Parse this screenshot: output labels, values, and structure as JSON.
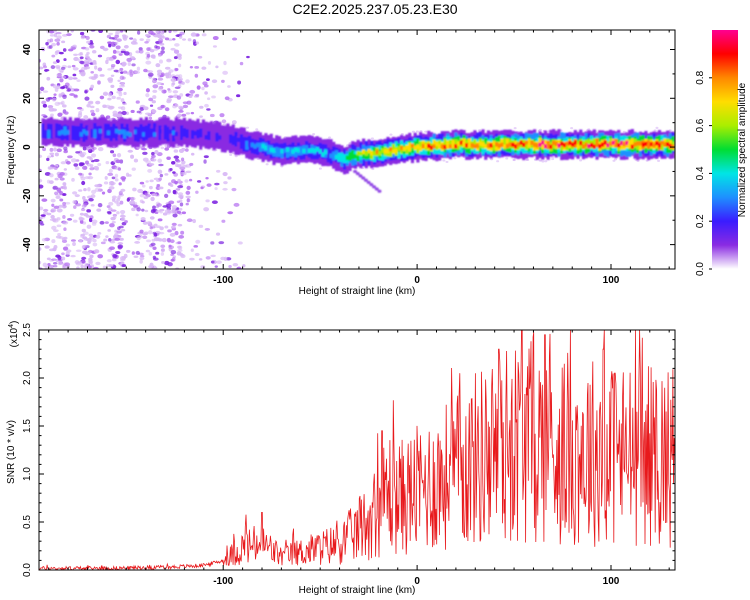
{
  "title": "C2E2.2025.237.05.23.E30",
  "colors": {
    "snr_line": "#e8191c",
    "axis": "#000000",
    "background": "#ffffff",
    "colormap": [
      "#ffffff",
      "#8a2be2",
      "#3a1cff",
      "#1e90ff",
      "#00e5e5",
      "#00dd33",
      "#aaee00",
      "#ffdd00",
      "#ff8800",
      "#ff0000",
      "#ff0090"
    ]
  },
  "chart_data": [
    {
      "type": "heatmap",
      "title": "C2E2.2025.237.05.23.E30",
      "xlabel": "Height of straight line (km)",
      "ylabel": "Frequency (Hz)",
      "xlim": [
        -195,
        133
      ],
      "ylim": [
        -50,
        48
      ],
      "xticks": [
        -100,
        0,
        100
      ],
      "xtick_labels": [
        "-100",
        "0",
        "100"
      ],
      "yticks": [
        -40,
        -20,
        0,
        20,
        40
      ],
      "ytick_labels": [
        "-40",
        "-20",
        "0",
        "20",
        "40"
      ],
      "colorbar": {
        "label": "Normalized spectral amplitude",
        "range": [
          0,
          1
        ],
        "ticks": [
          0.0,
          0.2,
          0.4,
          0.6,
          0.8
        ],
        "tick_labels": [
          "0.0",
          "0.2",
          "0.4",
          "0.6",
          "0.8"
        ]
      },
      "ridge": {
        "description_points_x": [
          -180,
          -150,
          -120,
          -100,
          -85,
          -70,
          -55,
          -45,
          -38,
          -30,
          -20,
          0,
          20,
          40,
          60,
          80,
          100,
          120,
          133
        ],
        "freq_hz": [
          6,
          6,
          6,
          4,
          1,
          -2,
          -1,
          -3,
          -5,
          -3,
          -2,
          0,
          1,
          1,
          1,
          1,
          1,
          1,
          1
        ],
        "amplitude": [
          0.3,
          0.3,
          0.25,
          0.2,
          0.35,
          0.4,
          0.4,
          0.35,
          0.5,
          0.6,
          0.7,
          0.8,
          0.85,
          0.85,
          0.9,
          0.88,
          0.9,
          0.88,
          0.85
        ]
      }
    },
    {
      "type": "line",
      "xlabel": "Height of straight line (km)",
      "ylabel": "SNR (10 * v/v)",
      "y_scale_label": "(x10",
      "y_scale_exponent": "4",
      "y_scale_suffix": ")",
      "xlim": [
        -195,
        133
      ],
      "ylim": [
        0,
        2.5
      ],
      "xticks": [
        -100,
        0,
        100
      ],
      "xtick_labels": [
        "-100",
        "0",
        "100"
      ],
      "yticks": [
        0.0,
        0.5,
        1.0,
        1.5,
        2.0,
        2.5
      ],
      "ytick_labels": [
        "0.0",
        "0.5",
        "1.0",
        "1.5",
        "2.0",
        "2.5"
      ],
      "series": [
        {
          "name": "SNR",
          "x": [
            -195,
            -160,
            -130,
            -110,
            -100,
            -90,
            -80,
            -70,
            -60,
            -50,
            -40,
            -30,
            -20,
            -15,
            -10,
            0,
            10,
            20,
            30,
            40,
            50,
            60,
            70,
            80,
            90,
            100,
            110,
            120,
            133
          ],
          "y": [
            0.02,
            0.02,
            0.03,
            0.05,
            0.1,
            0.25,
            0.3,
            0.15,
            0.2,
            0.25,
            0.3,
            0.45,
            0.7,
            0.9,
            0.8,
            0.9,
            1.0,
            1.1,
            1.25,
            1.35,
            1.45,
            1.5,
            1.4,
            1.35,
            1.35,
            1.3,
            1.3,
            1.3,
            1.3
          ],
          "peak_values": [
            {
              "x": -80,
              "y": 0.6
            },
            {
              "x": -18,
              "y": 1.45
            },
            {
              "x": 22,
              "y": 2.05
            },
            {
              "x": 42,
              "y": 2.3
            },
            {
              "x": 54,
              "y": 2.5
            },
            {
              "x": 66,
              "y": 2.45
            },
            {
              "x": 96,
              "y": 2.3
            },
            {
              "x": 102,
              "y": 2.05
            }
          ]
        }
      ]
    }
  ]
}
